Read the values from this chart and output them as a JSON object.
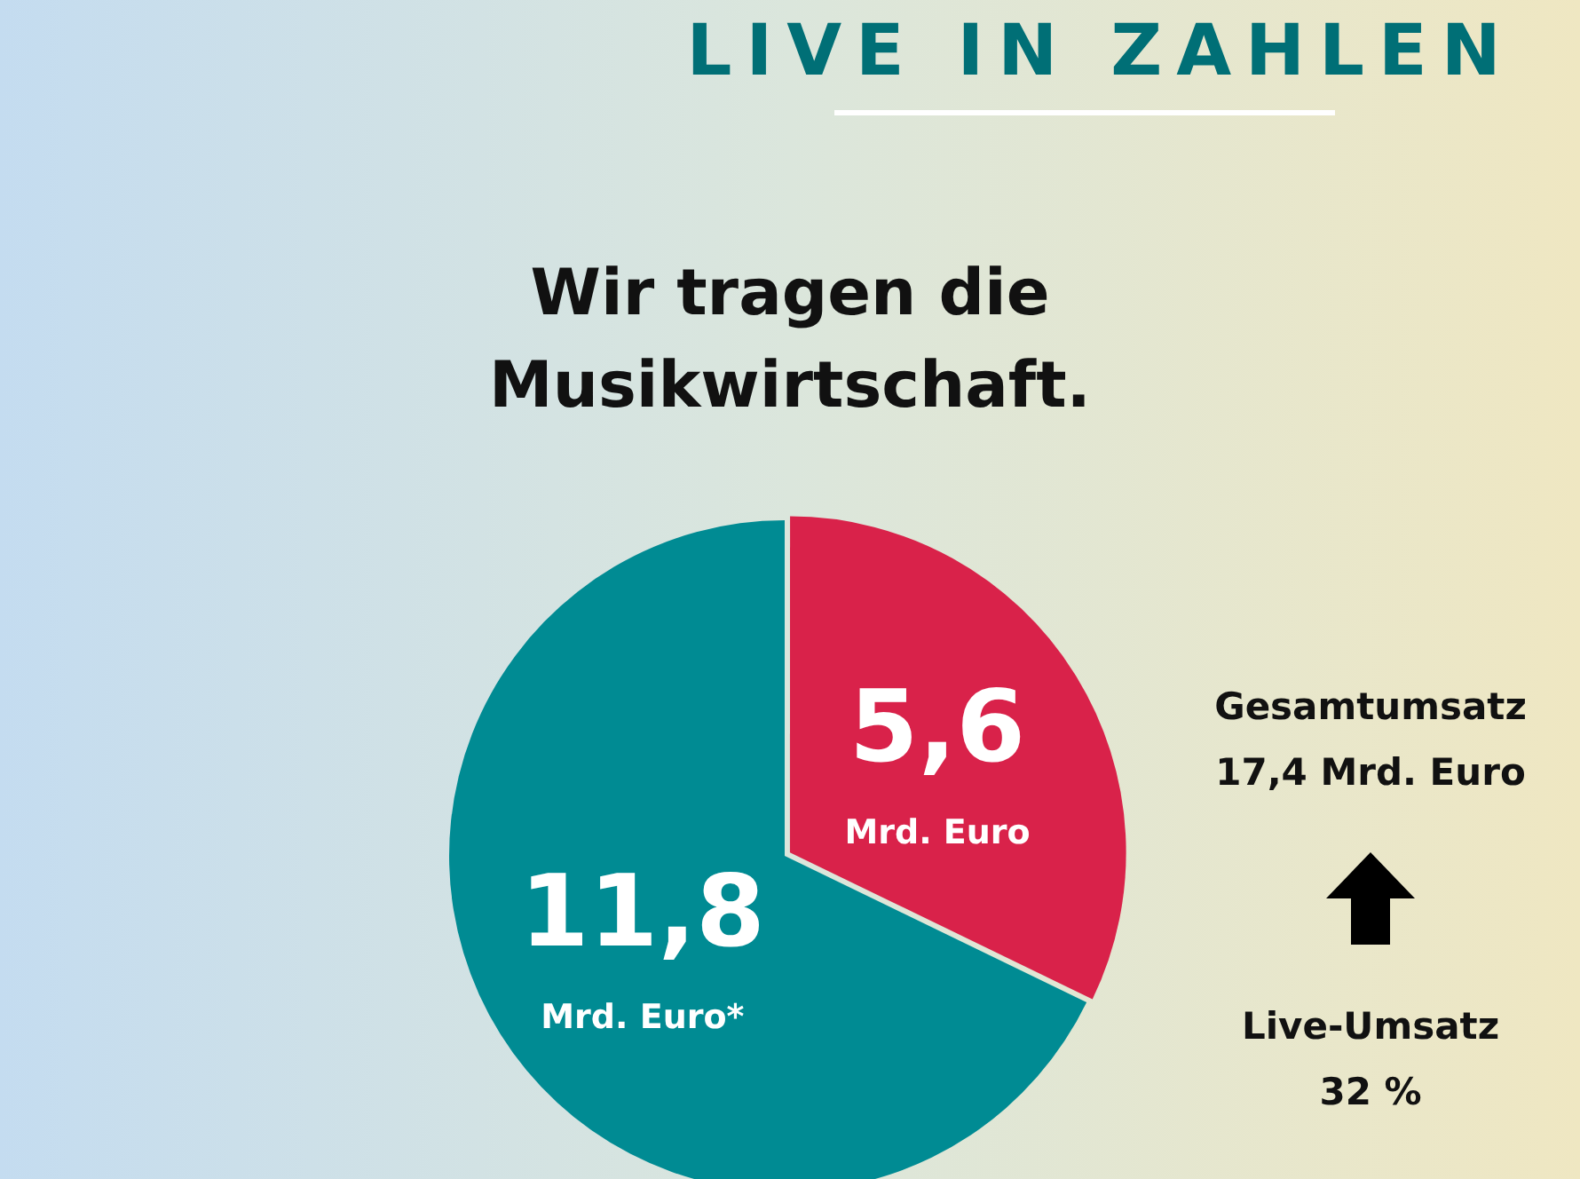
{
  "chart_data": {
    "type": "pie",
    "title": "Wir tragen die Musikwirtschaft.",
    "categories": [
      null,
      null
    ],
    "values": [
      5.6,
      11.8
    ],
    "colors": [
      "#d9224a",
      "#008b93"
    ],
    "value_labels": [
      "5,6\nMrd. Euro",
      "11,8\nMrd. Euro*"
    ],
    "legend": false,
    "annotations": [
      "LIVE IN ZAHLEN",
      "Gesamtumsatz\n17,4 Mrd. Euro",
      "Live-Umsatz\n32 %"
    ]
  }
}
